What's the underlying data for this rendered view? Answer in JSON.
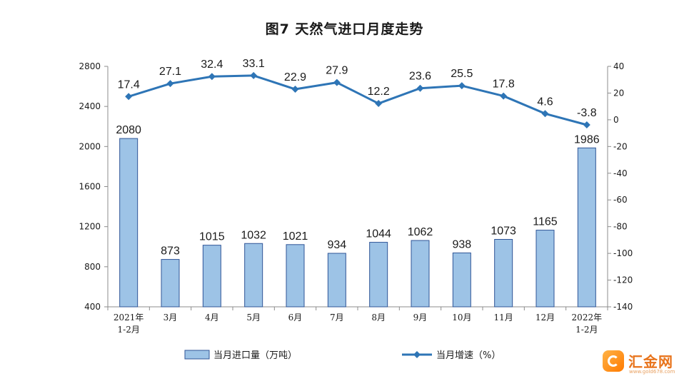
{
  "chart_data": {
    "type": "bar+line",
    "title": "图7  天然气进口月度走势",
    "categories": [
      [
        "2021年",
        "1-2月"
      ],
      [
        "3月"
      ],
      [
        "4月"
      ],
      [
        "5月"
      ],
      [
        "6月"
      ],
      [
        "7月"
      ],
      [
        "8月"
      ],
      [
        "9月"
      ],
      [
        "10月"
      ],
      [
        "11月"
      ],
      [
        "12月"
      ],
      [
        "2022年",
        "1-2月"
      ]
    ],
    "series": [
      {
        "name": "当月进口量（万吨）",
        "kind": "bar",
        "axis": "left",
        "color": "#9dc3e6",
        "edge_color": "#2f5597",
        "values": [
          2080,
          873,
          1015,
          1032,
          1021,
          934,
          1044,
          1062,
          938,
          1073,
          1165,
          1986
        ]
      },
      {
        "name": "当月增速（%）",
        "kind": "line",
        "axis": "right",
        "color": "#2e75b6",
        "values": [
          17.4,
          27.1,
          32.4,
          33.1,
          22.9,
          27.9,
          12.2,
          23.6,
          25.5,
          17.8,
          4.6,
          -3.8
        ]
      }
    ],
    "y_left": {
      "range": [
        400,
        2800
      ],
      "ticks": [
        400,
        800,
        1200,
        1600,
        2000,
        2400,
        2800
      ]
    },
    "y_right": {
      "range": [
        -140,
        40
      ],
      "ticks": [
        -140,
        -120,
        -100,
        -80,
        -60,
        -40,
        -20,
        0,
        20,
        40
      ]
    },
    "legend_position": "bottom",
    "grid": false
  },
  "watermark": {
    "name": "汇金网",
    "url": "www.gold678.com"
  }
}
